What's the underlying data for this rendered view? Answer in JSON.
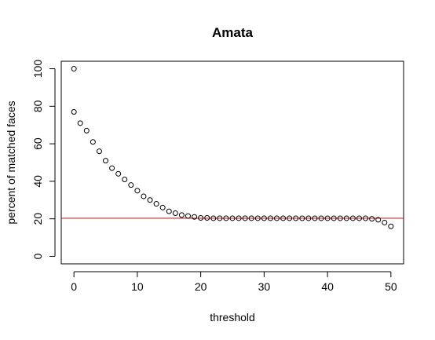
{
  "chart_data": {
    "type": "scatter",
    "title": "Amata",
    "xlabel": "threshold",
    "ylabel": "percent of matched faces",
    "xlim": [
      -2,
      52
    ],
    "ylim": [
      -4,
      104
    ],
    "xticks": [
      "0",
      "10",
      "20",
      "30",
      "40",
      "50"
    ],
    "yticks": [
      "0",
      "20",
      "40",
      "60",
      "80",
      "100"
    ],
    "grid": false,
    "legend": "none",
    "x": [
      0,
      0,
      1,
      2,
      3,
      4,
      5,
      6,
      7,
      8,
      9,
      10,
      11,
      12,
      13,
      14,
      15,
      16,
      17,
      18,
      19,
      20,
      21,
      22,
      23,
      24,
      25,
      26,
      27,
      28,
      29,
      30,
      31,
      32,
      33,
      34,
      35,
      36,
      37,
      38,
      39,
      40,
      41,
      42,
      43,
      44,
      45,
      46,
      47,
      48,
      49,
      50
    ],
    "y": [
      100,
      77,
      71,
      67,
      61,
      56,
      51,
      47,
      44,
      41,
      38,
      35,
      32,
      30,
      28,
      26,
      24,
      23,
      22,
      21.5,
      21,
      20.5,
      20.5,
      20.3,
      20.3,
      20.3,
      20.3,
      20.3,
      20.3,
      20.3,
      20.3,
      20.3,
      20.3,
      20.3,
      20.3,
      20.3,
      20.3,
      20.3,
      20.3,
      20.3,
      20.3,
      20.3,
      20.3,
      20.3,
      20.3,
      20.3,
      20.3,
      20.3,
      20,
      19.5,
      18,
      16
    ],
    "reference_line": {
      "y": 20.3,
      "color": "#d62728"
    },
    "colors": {
      "points": "#000000",
      "frame": "#000000"
    }
  }
}
